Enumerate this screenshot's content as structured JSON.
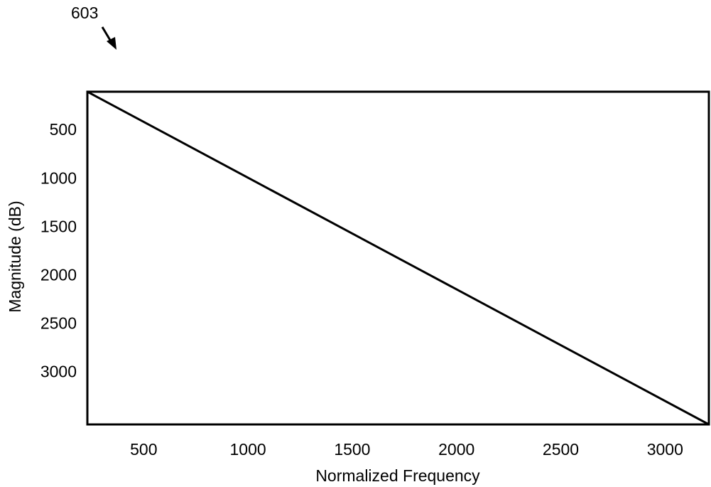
{
  "figure": {
    "reference_numeral": "603"
  },
  "chart_data": {
    "type": "line",
    "title": "",
    "xlabel": "Normalized Frequency",
    "ylabel": "Magnitude (dB)",
    "xlim": [
      230,
      3210
    ],
    "ylim": [
      110,
      3545
    ],
    "y_inverted": true,
    "grid": false,
    "x_ticks": [
      500,
      1000,
      1500,
      2000,
      2500,
      3000
    ],
    "x_tick_labels": [
      "500",
      "1000",
      "1500",
      "2000",
      "2500",
      "3000"
    ],
    "y_ticks": [
      500,
      1000,
      1500,
      2000,
      2500,
      3000
    ],
    "y_tick_labels": [
      "500",
      "1000",
      "1500",
      "2000",
      "2500",
      "3000"
    ],
    "series": [
      {
        "x": [
          230,
          3210
        ],
        "y": [
          110,
          3545
        ]
      }
    ],
    "colors": {
      "line": "#000000",
      "frame": "#000000",
      "background": "#ffffff"
    }
  }
}
